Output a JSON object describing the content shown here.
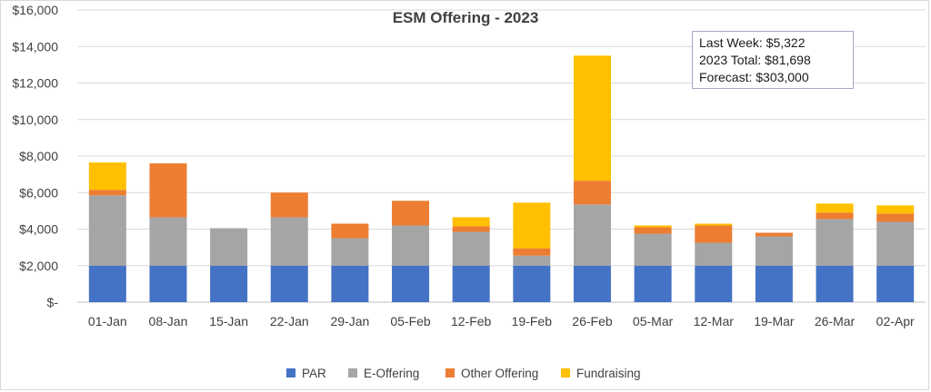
{
  "chart_data": {
    "type": "bar",
    "stacked": true,
    "title": "ESM Offering - 2023",
    "xlabel": "",
    "ylabel": "",
    "ylim": [
      0,
      16000
    ],
    "yticks": [
      {
        "value": 0,
        "label": "$-"
      },
      {
        "value": 2000,
        "label": "$2,000"
      },
      {
        "value": 4000,
        "label": "$4,000"
      },
      {
        "value": 6000,
        "label": "$6,000"
      },
      {
        "value": 8000,
        "label": "$8,000"
      },
      {
        "value": 10000,
        "label": "$10,000"
      },
      {
        "value": 12000,
        "label": "$12,000"
      },
      {
        "value": 14000,
        "label": "$14,000"
      },
      {
        "value": 16000,
        "label": "$16,000"
      }
    ],
    "grid": true,
    "legend_position": "bottom",
    "categories": [
      "01-Jan",
      "08-Jan",
      "15-Jan",
      "22-Jan",
      "29-Jan",
      "05-Feb",
      "12-Feb",
      "19-Feb",
      "26-Feb",
      "05-Mar",
      "12-Mar",
      "19-Mar",
      "26-Mar",
      "02-Apr"
    ],
    "series": [
      {
        "name": "PAR",
        "color": "#4472c4",
        "values": [
          2000,
          2000,
          2000,
          2000,
          2000,
          2000,
          2000,
          2000,
          2000,
          2000,
          2000,
          2000,
          2000,
          2000
        ]
      },
      {
        "name": "E-Offering",
        "color": "#a5a5a5",
        "values": [
          3850,
          2650,
          2050,
          2650,
          1500,
          2200,
          1850,
          550,
          3350,
          1750,
          1250,
          1600,
          2550,
          2400
        ]
      },
      {
        "name": "Other Offering",
        "color": "#ed7d31",
        "values": [
          300,
          2950,
          0,
          1350,
          800,
          1350,
          300,
          400,
          1300,
          350,
          950,
          200,
          350,
          450
        ]
      },
      {
        "name": "Fundraising",
        "color": "#ffc000",
        "values": [
          1500,
          0,
          0,
          0,
          0,
          0,
          500,
          2500,
          6850,
          100,
          100,
          0,
          500,
          450
        ]
      }
    ],
    "annotation": {
      "lines": [
        "Last Week: $5,322",
        "2023 Total: $81,698",
        "Forecast: $303,000"
      ]
    }
  }
}
